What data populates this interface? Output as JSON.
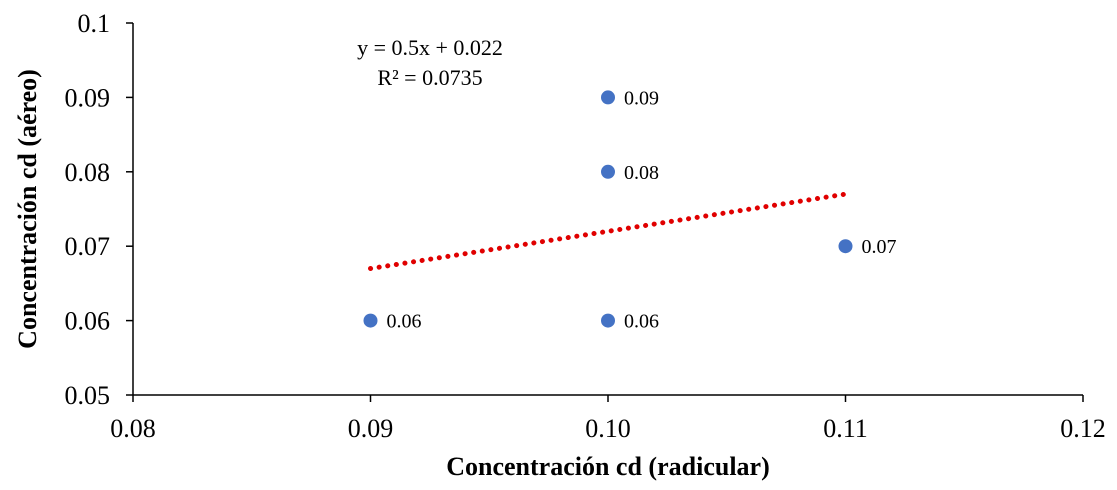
{
  "chart_data": {
    "type": "scatter",
    "title": "",
    "xlabel": "Concentración cd (radicular)",
    "ylabel": "Concentración cd (aéreo)",
    "xlim": [
      0.08,
      0.12
    ],
    "ylim": [
      0.05,
      0.1
    ],
    "x_ticks": [
      "0.08",
      "0.09",
      "0.10",
      "0.11",
      "0.12"
    ],
    "y_ticks": [
      "0.05",
      "0.06",
      "0.07",
      "0.08",
      "0.09",
      "0.1"
    ],
    "grid": false,
    "legend": "none",
    "marker_color": "#4472C4",
    "points": [
      {
        "x": 0.09,
        "y": 0.06,
        "label": "0.06"
      },
      {
        "x": 0.1,
        "y": 0.06,
        "label": "0.06"
      },
      {
        "x": 0.1,
        "y": 0.08,
        "label": "0.08"
      },
      {
        "x": 0.1,
        "y": 0.09,
        "label": "0.09"
      },
      {
        "x": 0.11,
        "y": 0.07,
        "label": "0.07"
      }
    ],
    "trendline": {
      "type": "linear",
      "slope": 0.5,
      "intercept": 0.022,
      "x_range": [
        0.09,
        0.11
      ],
      "color": "#E00000",
      "style": "dotted",
      "equation": "y = 0.5x + 0.022",
      "r_squared": "R² = 0.0735"
    }
  }
}
